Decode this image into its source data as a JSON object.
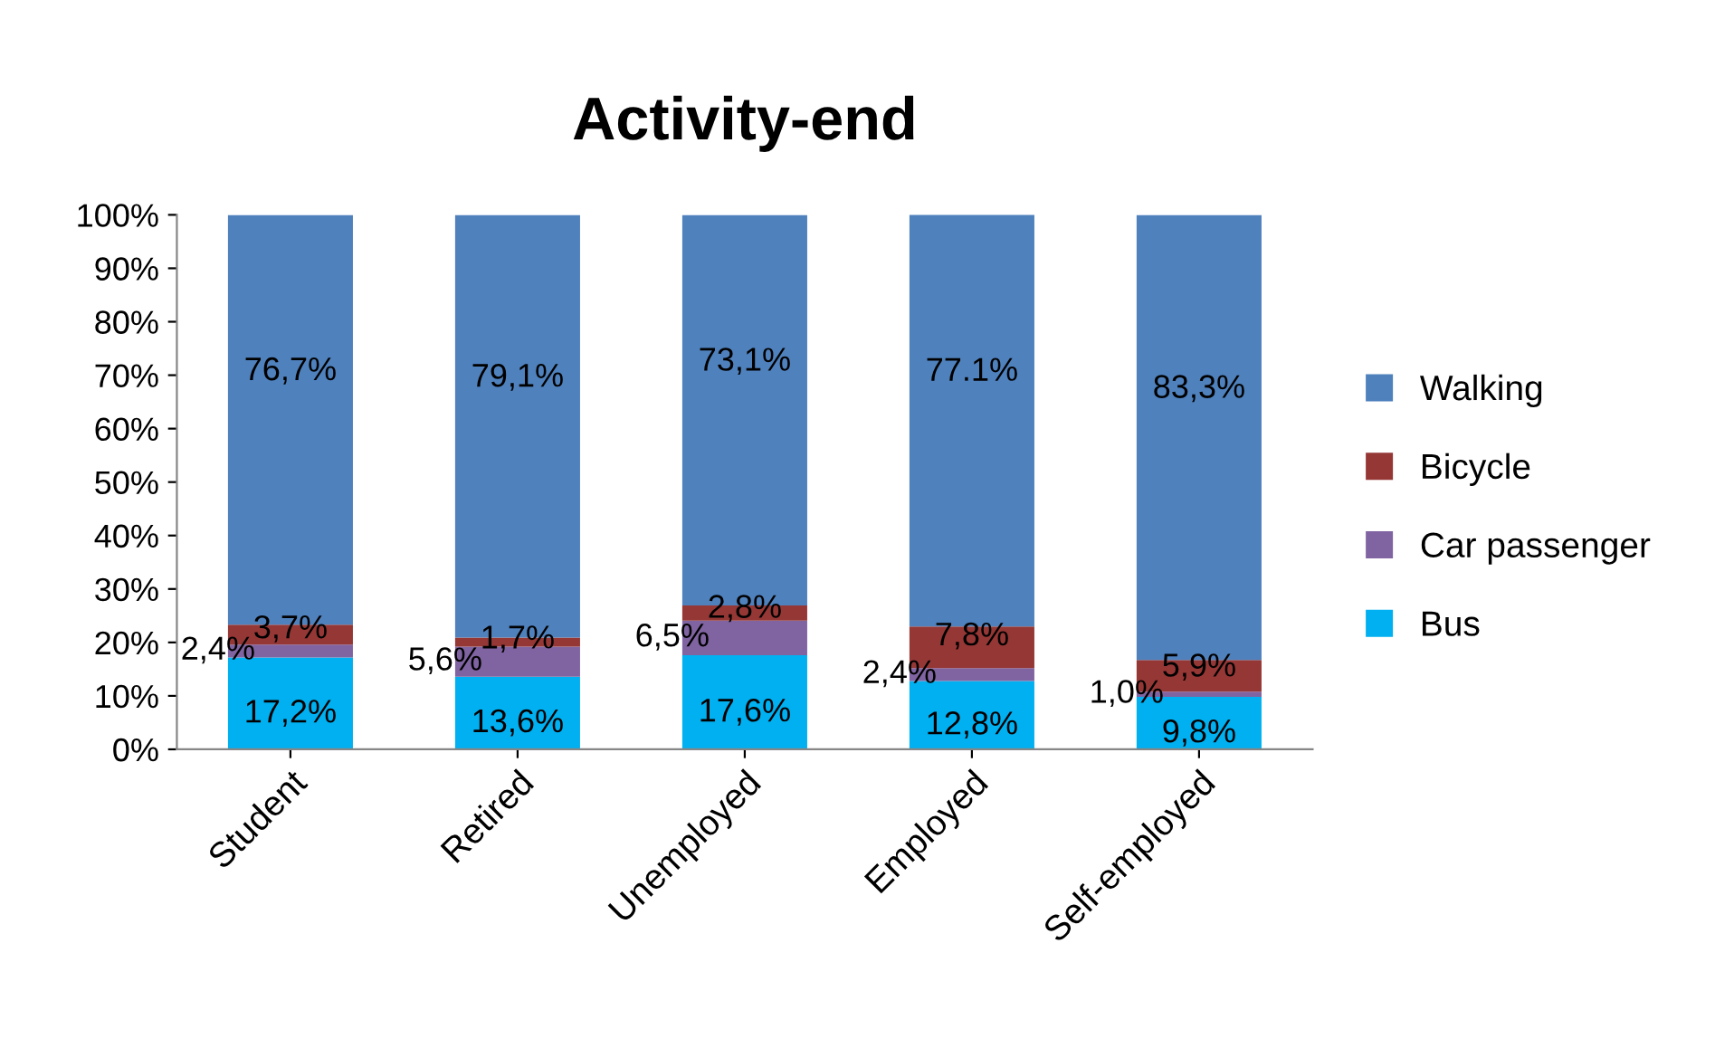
{
  "chart_data": {
    "type": "bar",
    "stacked": true,
    "title": "Activity-end",
    "categories": [
      "Student",
      "Retired",
      "Unemployed",
      "Employed",
      "Self-employed"
    ],
    "series": [
      {
        "name": "Bus",
        "color": "#00b0f0",
        "values": [
          17.2,
          13.6,
          17.6,
          12.8,
          9.8
        ],
        "value_labels": [
          "17,2%",
          "13,6%",
          "17,6%",
          "12,8%",
          "9,8%"
        ]
      },
      {
        "name": "Car passenger",
        "color": "#8064a2",
        "values": [
          2.4,
          5.6,
          6.5,
          2.4,
          1.0
        ],
        "value_labels": [
          "2,4%",
          "5,6%",
          "6,5%",
          "2,4%",
          "1,0%"
        ]
      },
      {
        "name": "Bicycle",
        "color": "#953735",
        "values": [
          3.7,
          1.7,
          2.8,
          7.8,
          5.9
        ],
        "value_labels": [
          "3,7%",
          "1,7%",
          "2,8%",
          "7,8%",
          "5,9%"
        ]
      },
      {
        "name": "Walking",
        "color": "#4f81bd",
        "values": [
          76.7,
          79.1,
          73.1,
          77.1,
          83.3
        ],
        "value_labels": [
          "76,7%",
          "79,1%",
          "73,1%",
          "77.1%",
          "83,3%"
        ]
      }
    ],
    "ylim": [
      0,
      100
    ],
    "yticks": [
      {
        "value": 0,
        "label": "0%"
      },
      {
        "value": 10,
        "label": "10%"
      },
      {
        "value": 20,
        "label": "20%"
      },
      {
        "value": 30,
        "label": "30%"
      },
      {
        "value": 40,
        "label": "40%"
      },
      {
        "value": 50,
        "label": "50%"
      },
      {
        "value": 60,
        "label": "60%"
      },
      {
        "value": 70,
        "label": "70%"
      },
      {
        "value": 80,
        "label": "80%"
      },
      {
        "value": 90,
        "label": "90%"
      },
      {
        "value": 100,
        "label": "100%"
      }
    ],
    "grid": false,
    "legend": "right"
  }
}
